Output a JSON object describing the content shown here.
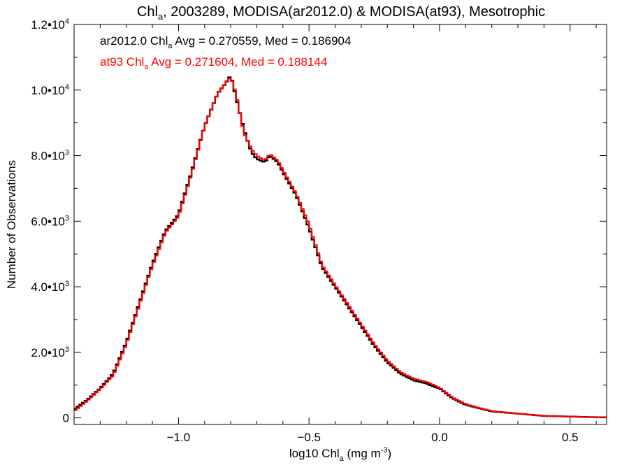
{
  "chart_data": {
    "type": "histogram-step",
    "title": {
      "base": "Chl",
      "sub": "a",
      "rest": ", 2003289, MODISA(ar2012.0) & MODISA(at93), Mesotrophic"
    },
    "xlabel": {
      "base": "log10 Chl",
      "sub": "a",
      "rest": " (mg m",
      "sup": "-3",
      "end": ")"
    },
    "ylabel": "Number of Observations",
    "xlim": [
      -1.4,
      0.64
    ],
    "ylim": [
      -200,
      12000
    ],
    "x_ticks": [
      {
        "value": -1.0,
        "label": "−1.0"
      },
      {
        "value": -0.5,
        "label": "−0.5"
      },
      {
        "value": 0.0,
        "label": "0.0"
      },
      {
        "value": 0.5,
        "label": "0.5"
      }
    ],
    "y_ticks": [
      {
        "value": 0,
        "label": "0"
      },
      {
        "value": 2000,
        "mant": "2.0•10",
        "exp": "3"
      },
      {
        "value": 4000,
        "mant": "4.0•10",
        "exp": "3"
      },
      {
        "value": 6000,
        "mant": "6.0•10",
        "exp": "3"
      },
      {
        "value": 8000,
        "mant": "8.0•10",
        "exp": "3"
      },
      {
        "value": 10000,
        "mant": "1.0•10",
        "exp": "4"
      },
      {
        "value": 12000,
        "mant": "1.2•10",
        "exp": "4"
      }
    ],
    "annotations": [
      {
        "pre": "ar2012.0 Chl",
        "sub": "a",
        "post": " Avg = 0.270559, Med = 0.186904",
        "color": "#000000"
      },
      {
        "pre": "at93 Chl",
        "sub": "a",
        "post": " Avg = 0.271604, Med = 0.188144",
        "color": "#ff0000"
      }
    ],
    "grid": false,
    "series": [
      {
        "color": "#000000",
        "x": [
          -1.4,
          -1.35,
          -1.3,
          -1.25,
          -1.2,
          -1.15,
          -1.1,
          -1.05,
          -1.0,
          -0.95,
          -0.9,
          -0.85,
          -0.82,
          -0.8,
          -0.78,
          -0.75,
          -0.72,
          -0.7,
          -0.67,
          -0.65,
          -0.62,
          -0.6,
          -0.55,
          -0.5,
          -0.45,
          -0.4,
          -0.35,
          -0.3,
          -0.25,
          -0.2,
          -0.15,
          -0.1,
          -0.05,
          -0.02,
          0.0,
          0.05,
          0.1,
          0.15,
          0.2,
          0.3,
          0.4,
          0.5,
          0.6,
          0.64
        ],
        "y": [
          250,
          550,
          900,
          1350,
          2300,
          3500,
          4700,
          5700,
          6200,
          7500,
          8900,
          9900,
          10200,
          10450,
          9800,
          8800,
          8100,
          7900,
          7800,
          8000,
          7800,
          7500,
          6800,
          5800,
          4600,
          4000,
          3400,
          2800,
          2200,
          1700,
          1350,
          1150,
          1050,
          950,
          900,
          600,
          400,
          300,
          200,
          130,
          60,
          40,
          20,
          20
        ]
      },
      {
        "color": "#ff0000",
        "x": [
          -1.4,
          -1.35,
          -1.3,
          -1.25,
          -1.2,
          -1.15,
          -1.1,
          -1.05,
          -1.0,
          -0.95,
          -0.9,
          -0.85,
          -0.82,
          -0.8,
          -0.78,
          -0.75,
          -0.72,
          -0.7,
          -0.67,
          -0.65,
          -0.62,
          -0.6,
          -0.55,
          -0.5,
          -0.45,
          -0.4,
          -0.35,
          -0.3,
          -0.25,
          -0.2,
          -0.15,
          -0.1,
          -0.05,
          -0.02,
          0.0,
          0.05,
          0.1,
          0.15,
          0.2,
          0.3,
          0.4,
          0.5,
          0.6,
          0.64
        ],
        "y": [
          200,
          520,
          880,
          1300,
          2250,
          3450,
          4650,
          5650,
          6150,
          7450,
          8900,
          9900,
          10200,
          10400,
          9900,
          8700,
          8200,
          8000,
          7850,
          8050,
          7850,
          7550,
          6850,
          5900,
          4650,
          4050,
          3450,
          2850,
          2250,
          1750,
          1400,
          1200,
          1100,
          1000,
          920,
          620,
          420,
          310,
          210,
          130,
          60,
          40,
          20,
          20
        ]
      }
    ]
  }
}
